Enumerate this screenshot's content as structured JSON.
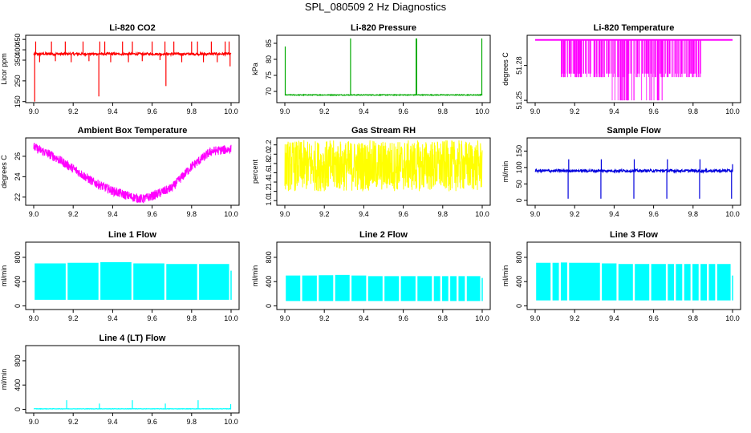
{
  "figure": {
    "title": "SPL_080509  2 Hz Diagnostics"
  },
  "chart_data": [
    {
      "id": "co2",
      "type": "line",
      "title": "Li-820 CO2",
      "ylabel": "Licor ppm",
      "color": "#ff0000",
      "xlim": [
        9.0,
        10.0
      ],
      "ylim": [
        145,
        470
      ],
      "xticks": [
        9.0,
        9.2,
        9.4,
        9.6,
        9.8,
        10.0
      ],
      "xtick_labels": [
        "9.0",
        "9.2",
        "9.4",
        "9.6",
        "9.8",
        "10.0"
      ],
      "yticks": [
        150,
        250,
        350,
        400,
        450
      ],
      "ytick_labels": [
        "150",
        "250",
        "350",
        "400",
        "450"
      ],
      "baseline": 380,
      "noise": 6,
      "spikes": [
        [
          9.005,
          150
        ],
        [
          9.01,
          440
        ],
        [
          9.03,
          340
        ],
        [
          9.09,
          440
        ],
        [
          9.11,
          345
        ],
        [
          9.16,
          440
        ],
        [
          9.19,
          340
        ],
        [
          9.25,
          440
        ],
        [
          9.28,
          345
        ],
        [
          9.33,
          175
        ],
        [
          9.335,
          440
        ],
        [
          9.36,
          440
        ],
        [
          9.39,
          340
        ],
        [
          9.45,
          440
        ],
        [
          9.48,
          340
        ],
        [
          9.5,
          440
        ],
        [
          9.55,
          345
        ],
        [
          9.6,
          440
        ],
        [
          9.64,
          350
        ],
        [
          9.665,
          440
        ],
        [
          9.67,
          225
        ],
        [
          9.71,
          440
        ],
        [
          9.75,
          340
        ],
        [
          9.8,
          440
        ],
        [
          9.83,
          440
        ],
        [
          9.86,
          340
        ],
        [
          9.9,
          440
        ],
        [
          9.93,
          340
        ],
        [
          9.97,
          440
        ],
        [
          9.99,
          440
        ],
        [
          9.995,
          320
        ]
      ]
    },
    {
      "id": "pressure",
      "type": "line",
      "title": "Li-820 Pressure",
      "ylabel": "kPa",
      "color": "#00aa00",
      "xlim": [
        9.0,
        10.0
      ],
      "ylim": [
        66.5,
        87.5
      ],
      "xticks": [
        9.0,
        9.2,
        9.4,
        9.6,
        9.8,
        10.0
      ],
      "xtick_labels": [
        "9.0",
        "9.2",
        "9.4",
        "9.6",
        "9.8",
        "10.0"
      ],
      "yticks": [
        70,
        75,
        80,
        85
      ],
      "ytick_labels": [
        "70",
        "75",
        "80",
        "85"
      ],
      "baseline": 68.9,
      "noise": 0.12,
      "spikes": [
        [
          9.002,
          84
        ],
        [
          9.333,
          86.5
        ],
        [
          9.665,
          86.5
        ],
        [
          9.668,
          86.5
        ],
        [
          9.998,
          86.5
        ]
      ]
    },
    {
      "id": "licor_temp",
      "type": "band",
      "title": "Li-820 Temperature",
      "ylabel": "degrees C",
      "color": "#ff00ff",
      "xlim": [
        9.0,
        10.0
      ],
      "ylim": [
        51.248,
        51.306
      ],
      "xticks": [
        9.0,
        9.2,
        9.4,
        9.6,
        9.8,
        10.0
      ],
      "xtick_labels": [
        "9.0",
        "9.2",
        "9.4",
        "9.6",
        "9.8",
        "10.0"
      ],
      "yticks": [
        51.25,
        51.28
      ],
      "ytick_labels": [
        "51.25",
        "51.28"
      ],
      "top": 51.302,
      "mid": 51.27,
      "low": 51.25
    },
    {
      "id": "ambient_temp",
      "type": "noisy",
      "title": "Ambient Box Temperature",
      "ylabel": "degrees C",
      "color": "#ff00ff",
      "xlim": [
        9.0,
        10.0
      ],
      "ylim": [
        21.2,
        27.8
      ],
      "xticks": [
        9.0,
        9.2,
        9.4,
        9.6,
        9.8,
        10.0
      ],
      "xtick_labels": [
        "9.0",
        "9.2",
        "9.4",
        "9.6",
        "9.8",
        "10.0"
      ],
      "yticks": [
        22,
        24,
        26
      ],
      "ytick_labels": [
        "22",
        "24",
        "26"
      ],
      "curve_x": [
        9.0,
        9.1,
        9.2,
        9.3,
        9.4,
        9.5,
        9.55,
        9.6,
        9.7,
        9.8,
        9.9,
        10.0
      ],
      "curve_y": [
        26.9,
        26.0,
        24.8,
        23.5,
        22.6,
        22.0,
        21.8,
        22.1,
        22.9,
        25.0,
        26.5,
        26.7
      ],
      "noise": 0.45
    },
    {
      "id": "rh",
      "type": "noisy",
      "title": "Gas Stream RH",
      "ylabel": "percent",
      "color": "#ffff00",
      "xlim": [
        9.0,
        10.0
      ],
      "ylim": [
        0.9,
        2.35
      ],
      "xticks": [
        9.0,
        9.2,
        9.4,
        9.6,
        9.8,
        10.0
      ],
      "xtick_labels": [
        "9.0",
        "9.2",
        "9.4",
        "9.6",
        "9.8",
        "10.0"
      ],
      "yticks": [
        1.0,
        1.2,
        1.4,
        1.6,
        1.8,
        2.0,
        2.2
      ],
      "ytick_labels": [
        "1.0",
        "1.2",
        "1.4",
        "1.6",
        "1.8",
        "2.0",
        "2.2"
      ],
      "curve_x": [
        9.0,
        10.0
      ],
      "curve_y": [
        1.75,
        1.75
      ],
      "noise": 0.55
    },
    {
      "id": "sample_flow",
      "type": "line",
      "title": "Sample Flow",
      "ylabel": "ml/min",
      "color": "#0000dd",
      "xlim": [
        9.0,
        10.0
      ],
      "ylim": [
        -15,
        190
      ],
      "xticks": [
        9.0,
        9.2,
        9.4,
        9.6,
        9.8,
        10.0
      ],
      "xtick_labels": [
        "9.0",
        "9.2",
        "9.4",
        "9.6",
        "9.8",
        "10.0"
      ],
      "yticks": [
        0,
        50,
        100,
        150
      ],
      "ytick_labels": [
        "0",
        "50",
        "100",
        "150"
      ],
      "baseline": 90,
      "noise": 4,
      "spikes": [
        [
          9.167,
          5
        ],
        [
          9.17,
          125
        ],
        [
          9.333,
          5
        ],
        [
          9.335,
          125
        ],
        [
          9.5,
          5
        ],
        [
          9.502,
          125
        ],
        [
          9.667,
          5
        ],
        [
          9.67,
          125
        ],
        [
          9.833,
          5
        ],
        [
          9.835,
          125
        ],
        [
          9.995,
          5
        ],
        [
          10.0,
          110
        ]
      ]
    },
    {
      "id": "line1",
      "type": "line",
      "title": "Line 1 Flow",
      "ylabel": "ml/min",
      "color": "#00ffff",
      "xlim": [
        9.0,
        10.0
      ],
      "ylim": [
        -60,
        1050
      ],
      "xticks": [
        9.0,
        9.2,
        9.4,
        9.6,
        9.8,
        10.0
      ],
      "xtick_labels": [
        "9.0",
        "9.2",
        "9.4",
        "9.6",
        "9.8",
        "10.0"
      ],
      "yticks": [
        0,
        400,
        800
      ],
      "ytick_labels": [
        "0",
        "400",
        "800"
      ]
    },
    {
      "id": "line2",
      "type": "line",
      "title": "Line 2 Flow",
      "ylabel": "ml/min",
      "color": "#00ffff",
      "xlim": [
        9.0,
        10.0
      ],
      "ylim": [
        -60,
        1050
      ],
      "xticks": [
        9.0,
        9.2,
        9.4,
        9.6,
        9.8,
        10.0
      ],
      "xtick_labels": [
        "9.0",
        "9.2",
        "9.4",
        "9.6",
        "9.8",
        "10.0"
      ],
      "yticks": [
        0,
        400,
        800
      ],
      "ytick_labels": [
        "0",
        "400",
        "800"
      ]
    },
    {
      "id": "line3",
      "type": "line",
      "title": "Line 3 Flow",
      "ylabel": "ml/min",
      "color": "#00ffff",
      "xlim": [
        9.0,
        10.0
      ],
      "ylim": [
        -60,
        1050
      ],
      "xticks": [
        9.0,
        9.2,
        9.4,
        9.6,
        9.8,
        10.0
      ],
      "xtick_labels": [
        "9.0",
        "9.2",
        "9.4",
        "9.6",
        "9.8",
        "10.0"
      ],
      "yticks": [
        0,
        400,
        800
      ],
      "ytick_labels": [
        "0",
        "400",
        "800"
      ]
    },
    {
      "id": "line4",
      "type": "line",
      "title": "Line 4 (LT) Flow",
      "ylabel": "ml/min",
      "color": "#00ffff",
      "xlim": [
        9.0,
        10.0
      ],
      "ylim": [
        -60,
        1050
      ],
      "xticks": [
        9.0,
        9.2,
        9.4,
        9.6,
        9.8,
        10.0
      ],
      "xtick_labels": [
        "9.0",
        "9.2",
        "9.4",
        "9.6",
        "9.8",
        "10.0"
      ],
      "yticks": [
        0,
        400,
        800
      ],
      "ytick_labels": [
        "0",
        "400",
        "800"
      ],
      "baseline": 8,
      "noise": 3,
      "spikes": [
        [
          9.167,
          150
        ],
        [
          9.333,
          95
        ],
        [
          9.5,
          150
        ],
        [
          9.667,
          95
        ],
        [
          9.833,
          150
        ],
        [
          9.998,
          85
        ]
      ]
    }
  ],
  "flow_series": {
    "line1": {
      "top": 700,
      "bottom": 100,
      "top_by_segment": [
        700,
        710,
        720,
        700,
        690,
        690
      ],
      "gaps": [
        9.167,
        9.333,
        9.5,
        9.667,
        9.833
      ],
      "end_value": 580
    },
    "line2": {
      "top": 500,
      "bottom": 80,
      "top_by_segment": [
        500,
        500,
        505,
        510,
        500,
        490
      ],
      "gaps": [
        9.083,
        9.167,
        9.25,
        9.333,
        9.417,
        9.5,
        9.583,
        9.667,
        9.75,
        9.792,
        9.833,
        9.875,
        9.917
      ],
      "end_value": 460
    },
    "line3": {
      "top": 700,
      "bottom": 90,
      "top_by_segment": [
        710,
        710,
        715,
        710,
        700,
        690
      ],
      "gaps": [
        9.083,
        9.125,
        9.167,
        9.333,
        9.417,
        9.5,
        9.583,
        9.667,
        9.708,
        9.75,
        9.792,
        9.833,
        9.875,
        9.917
      ],
      "end_value": 500
    }
  }
}
